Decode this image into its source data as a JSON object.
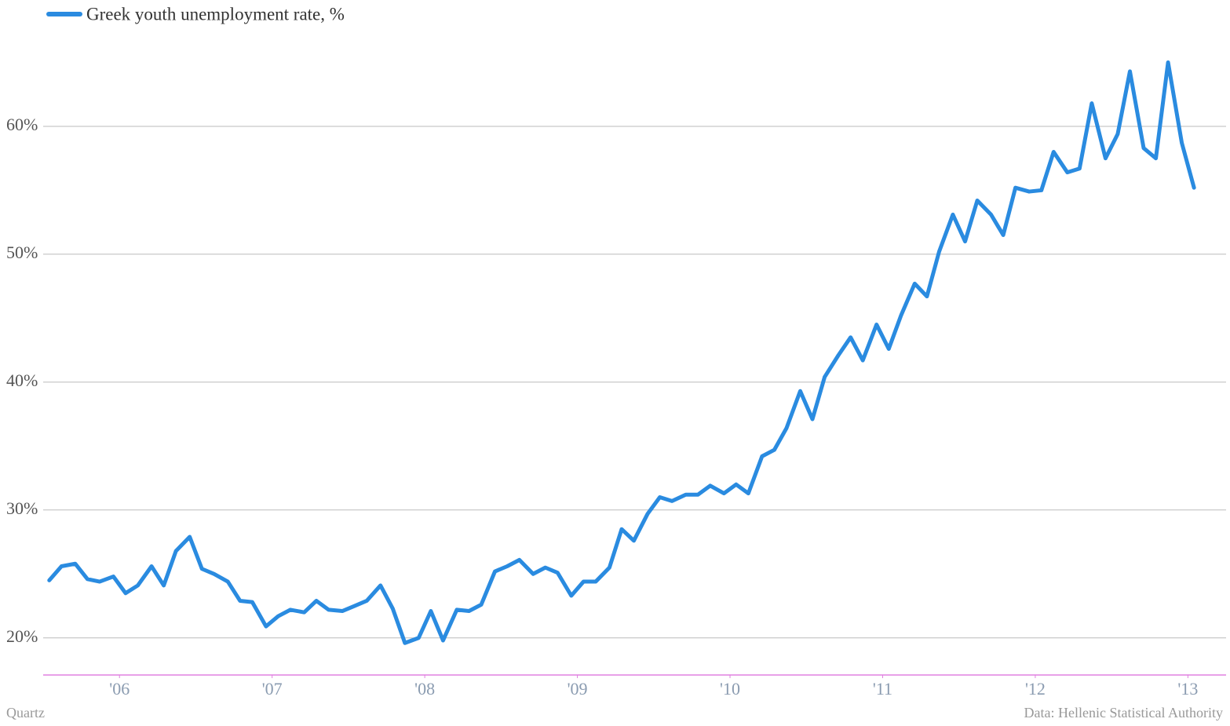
{
  "chart_data": {
    "type": "line",
    "series": [
      {
        "name": "Greek youth unemployment rate, %",
        "color": "#2a8be0",
        "values": [
          24.5,
          25.6,
          25.8,
          24.6,
          24.4,
          24.8,
          23.5,
          24.1,
          25.6,
          24.1,
          26.8,
          27.9,
          25.4,
          25.0,
          24.4,
          22.9,
          22.8,
          20.9,
          21.7,
          22.2,
          22.0,
          22.9,
          22.2,
          22.1,
          22.5,
          22.9,
          24.1,
          22.3,
          19.6,
          20.0,
          22.1,
          19.8,
          22.2,
          22.1,
          22.6,
          25.2,
          25.6,
          26.1,
          25.0,
          25.5,
          25.1,
          23.3,
          24.4,
          24.4,
          25.5,
          28.5,
          27.6,
          29.7,
          31.0,
          30.7,
          31.2,
          31.2,
          31.9,
          31.3,
          32.0,
          31.3,
          34.2,
          34.7,
          36.4,
          39.3,
          37.1,
          40.4,
          42.1,
          43.5,
          41.7,
          44.5,
          42.6,
          45.2,
          47.7,
          46.7,
          50.2,
          53.1,
          51.0,
          54.2,
          53.1,
          51.5,
          55.2,
          54.9,
          55.0,
          58.0,
          56.4,
          56.7,
          61.8,
          57.5,
          59.4,
          64.3,
          58.3,
          57.5,
          65.0,
          58.7,
          55.2
        ]
      }
    ],
    "x": [
      2005.54,
      2005.62,
      2005.71,
      2005.79,
      2005.87,
      2005.96,
      2006.04,
      2006.12,
      2006.21,
      2006.29,
      2006.37,
      2006.46,
      2006.54,
      2006.62,
      2006.71,
      2006.79,
      2006.87,
      2006.96,
      2007.04,
      2007.12,
      2007.21,
      2007.29,
      2007.37,
      2007.46,
      2007.54,
      2007.62,
      2007.71,
      2007.79,
      2007.87,
      2007.96,
      2008.04,
      2008.12,
      2008.21,
      2008.29,
      2008.37,
      2008.46,
      2008.54,
      2008.62,
      2008.71,
      2008.79,
      2008.87,
      2008.96,
      2009.04,
      2009.12,
      2009.21,
      2009.29,
      2009.37,
      2009.46,
      2009.54,
      2009.62,
      2009.71,
      2009.79,
      2009.87,
      2009.96,
      2010.04,
      2010.12,
      2010.21,
      2010.29,
      2010.37,
      2010.46,
      2010.54,
      2010.62,
      2010.71,
      2010.79,
      2010.87,
      2010.96,
      2011.04,
      2011.12,
      2011.21,
      2011.29,
      2011.37,
      2011.46,
      2011.54,
      2011.62,
      2011.71,
      2011.79,
      2011.87,
      2011.96,
      2012.04,
      2012.12,
      2012.21,
      2012.29,
      2012.37,
      2012.46,
      2012.54,
      2012.62,
      2012.71,
      2012.79,
      2012.87,
      2012.96,
      2013.04
    ],
    "xlim": [
      2005.5,
      2013.25
    ],
    "xticks": [
      {
        "value": 2006,
        "label": "'06"
      },
      {
        "value": 2007,
        "label": "'07"
      },
      {
        "value": 2008,
        "label": "'08"
      },
      {
        "value": 2009,
        "label": "'09"
      },
      {
        "value": 2010,
        "label": "'10"
      },
      {
        "value": 2011,
        "label": "'11"
      },
      {
        "value": 2012,
        "label": "'12"
      },
      {
        "value": 2013,
        "label": "'13"
      }
    ],
    "ylim": [
      17.1,
      67
    ],
    "yticks": [
      {
        "value": 20,
        "label": "20%"
      },
      {
        "value": 30,
        "label": "30%"
      },
      {
        "value": 40,
        "label": "40%"
      },
      {
        "value": 50,
        "label": "50%"
      },
      {
        "value": 60,
        "label": "60%"
      }
    ],
    "grid": true,
    "legend": "top-left",
    "source": "Data: Hellenic Statistical Authority",
    "credit": "Quartz"
  }
}
